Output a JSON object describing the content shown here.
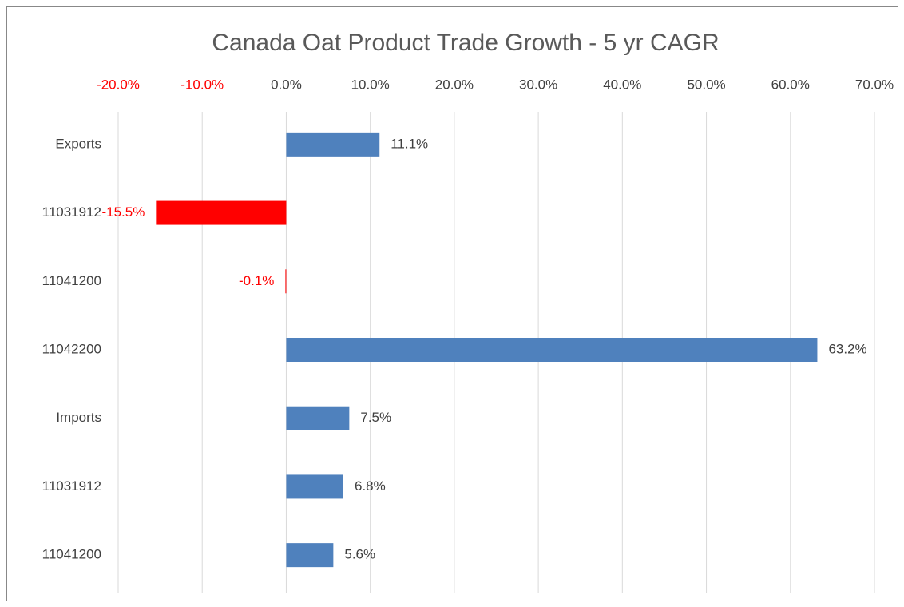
{
  "chart_data": {
    "type": "bar",
    "orientation": "horizontal",
    "title": "Canada Oat Product Trade Growth - 5 yr CAGR",
    "categories": [
      "Exports",
      "11031912",
      "11041200",
      "11042200",
      "Imports",
      "11031912",
      "11041200"
    ],
    "values": [
      11.1,
      -15.5,
      -0.1,
      63.2,
      7.5,
      6.8,
      5.6
    ],
    "value_labels": [
      "11.1%",
      "-15.5%",
      "-0.1%",
      "63.2%",
      "7.5%",
      "6.8%",
      "5.6%"
    ],
    "color": "#4f81bd",
    "negative_color": "#ff0000",
    "xlim": [
      -20,
      70
    ],
    "xticks": [
      {
        "value": -20,
        "label": "-20.0%"
      },
      {
        "value": -10,
        "label": "-10.0%"
      },
      {
        "value": 0,
        "label": "0.0%"
      },
      {
        "value": 10,
        "label": "10.0%"
      },
      {
        "value": 20,
        "label": "20.0%"
      },
      {
        "value": 30,
        "label": "30.0%"
      },
      {
        "value": 40,
        "label": "40.0%"
      },
      {
        "value": 50,
        "label": "50.0%"
      },
      {
        "value": 60,
        "label": "60.0%"
      },
      {
        "value": 70,
        "label": "70.0%"
      }
    ],
    "grid": true
  }
}
